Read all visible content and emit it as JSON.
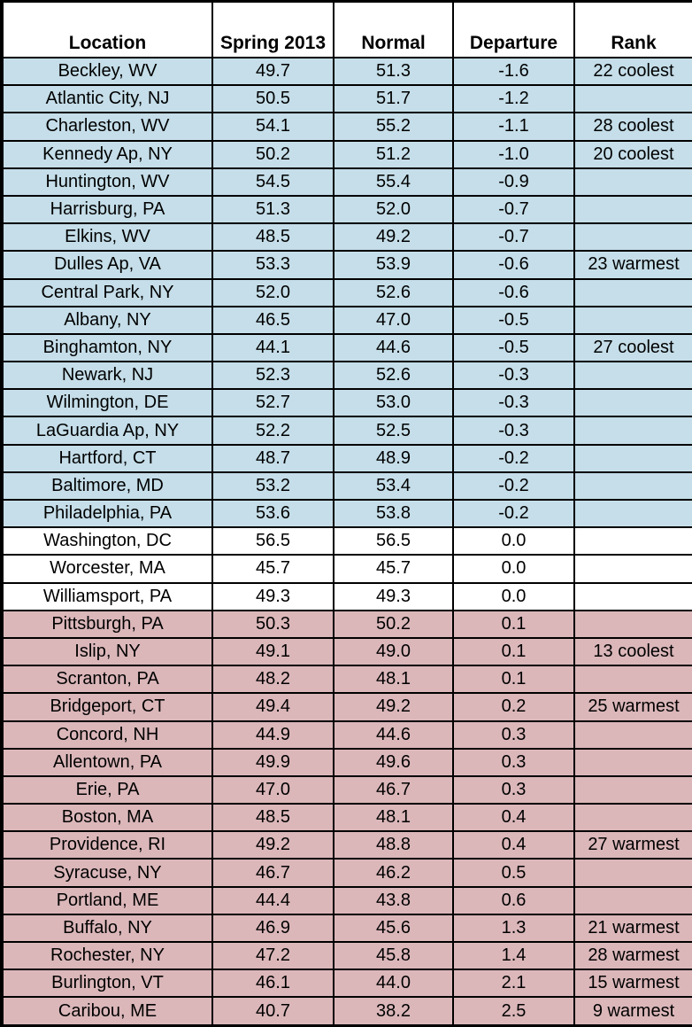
{
  "colors": {
    "cool_bg": "#C5DEE9",
    "zero_bg": "#FFFFFF",
    "warm_bg": "#DBB7BA",
    "border": "#000000",
    "text": "#000000"
  },
  "chart_data": {
    "type": "table",
    "title": "",
    "columns": [
      "Location",
      "Spring 2013",
      "Normal",
      "Departure",
      "Rank"
    ],
    "tone_meaning": {
      "cool": "departure below normal (light blue row)",
      "zero": "departure of 0.0 (white row)",
      "warm": "departure above normal (light pink row)"
    },
    "rows": [
      {
        "tone": "cool",
        "cells": [
          "Beckley, WV",
          "49.7",
          "51.3",
          "-1.6",
          "22 coolest"
        ]
      },
      {
        "tone": "cool",
        "cells": [
          "Atlantic City, NJ",
          "50.5",
          "51.7",
          "-1.2",
          ""
        ]
      },
      {
        "tone": "cool",
        "cells": [
          "Charleston, WV",
          "54.1",
          "55.2",
          "-1.1",
          "28 coolest"
        ]
      },
      {
        "tone": "cool",
        "cells": [
          "Kennedy Ap, NY",
          "50.2",
          "51.2",
          "-1.0",
          "20 coolest"
        ]
      },
      {
        "tone": "cool",
        "cells": [
          "Huntington, WV",
          "54.5",
          "55.4",
          "-0.9",
          ""
        ]
      },
      {
        "tone": "cool",
        "cells": [
          "Harrisburg, PA",
          "51.3",
          "52.0",
          "-0.7",
          ""
        ]
      },
      {
        "tone": "cool",
        "cells": [
          "Elkins, WV",
          "48.5",
          "49.2",
          "-0.7",
          ""
        ]
      },
      {
        "tone": "cool",
        "cells": [
          "Dulles Ap, VA",
          "53.3",
          "53.9",
          "-0.6",
          "23 warmest"
        ]
      },
      {
        "tone": "cool",
        "cells": [
          "Central Park, NY",
          "52.0",
          "52.6",
          "-0.6",
          ""
        ]
      },
      {
        "tone": "cool",
        "cells": [
          "Albany, NY",
          "46.5",
          "47.0",
          "-0.5",
          ""
        ]
      },
      {
        "tone": "cool",
        "cells": [
          "Binghamton, NY",
          "44.1",
          "44.6",
          "-0.5",
          "27 coolest"
        ]
      },
      {
        "tone": "cool",
        "cells": [
          "Newark, NJ",
          "52.3",
          "52.6",
          "-0.3",
          ""
        ]
      },
      {
        "tone": "cool",
        "cells": [
          "Wilmington, DE",
          "52.7",
          "53.0",
          "-0.3",
          ""
        ]
      },
      {
        "tone": "cool",
        "cells": [
          "LaGuardia Ap, NY",
          "52.2",
          "52.5",
          "-0.3",
          ""
        ]
      },
      {
        "tone": "cool",
        "cells": [
          "Hartford, CT",
          "48.7",
          "48.9",
          "-0.2",
          ""
        ]
      },
      {
        "tone": "cool",
        "cells": [
          "Baltimore, MD",
          "53.2",
          "53.4",
          "-0.2",
          ""
        ]
      },
      {
        "tone": "cool",
        "cells": [
          "Philadelphia, PA",
          "53.6",
          "53.8",
          "-0.2",
          ""
        ]
      },
      {
        "tone": "zero",
        "cells": [
          "Washington, DC",
          "56.5",
          "56.5",
          "0.0",
          ""
        ]
      },
      {
        "tone": "zero",
        "cells": [
          "Worcester, MA",
          "45.7",
          "45.7",
          "0.0",
          ""
        ]
      },
      {
        "tone": "zero",
        "cells": [
          "Williamsport, PA",
          "49.3",
          "49.3",
          "0.0",
          ""
        ]
      },
      {
        "tone": "warm",
        "cells": [
          "Pittsburgh, PA",
          "50.3",
          "50.2",
          "0.1",
          ""
        ]
      },
      {
        "tone": "warm",
        "cells": [
          "Islip, NY",
          "49.1",
          "49.0",
          "0.1",
          "13 coolest"
        ]
      },
      {
        "tone": "warm",
        "cells": [
          "Scranton, PA",
          "48.2",
          "48.1",
          "0.1",
          ""
        ]
      },
      {
        "tone": "warm",
        "cells": [
          "Bridgeport, CT",
          "49.4",
          "49.2",
          "0.2",
          "25 warmest"
        ]
      },
      {
        "tone": "warm",
        "cells": [
          "Concord, NH",
          "44.9",
          "44.6",
          "0.3",
          ""
        ]
      },
      {
        "tone": "warm",
        "cells": [
          "Allentown, PA",
          "49.9",
          "49.6",
          "0.3",
          ""
        ]
      },
      {
        "tone": "warm",
        "cells": [
          "Erie, PA",
          "47.0",
          "46.7",
          "0.3",
          ""
        ]
      },
      {
        "tone": "warm",
        "cells": [
          "Boston, MA",
          "48.5",
          "48.1",
          "0.4",
          ""
        ]
      },
      {
        "tone": "warm",
        "cells": [
          "Providence, RI",
          "49.2",
          "48.8",
          "0.4",
          "27 warmest"
        ]
      },
      {
        "tone": "warm",
        "cells": [
          "Syracuse, NY",
          "46.7",
          "46.2",
          "0.5",
          ""
        ]
      },
      {
        "tone": "warm",
        "cells": [
          "Portland, ME",
          "44.4",
          "43.8",
          "0.6",
          ""
        ]
      },
      {
        "tone": "warm",
        "cells": [
          "Buffalo, NY",
          "46.9",
          "45.6",
          "1.3",
          "21 warmest"
        ]
      },
      {
        "tone": "warm",
        "cells": [
          "Rochester, NY",
          "47.2",
          "45.8",
          "1.4",
          "28 warmest"
        ]
      },
      {
        "tone": "warm",
        "cells": [
          "Burlington, VT",
          "46.1",
          "44.0",
          "2.1",
          "15 warmest"
        ]
      },
      {
        "tone": "warm",
        "cells": [
          "Caribou, ME",
          "40.7",
          "38.2",
          "2.5",
          "9 warmest"
        ]
      }
    ]
  }
}
